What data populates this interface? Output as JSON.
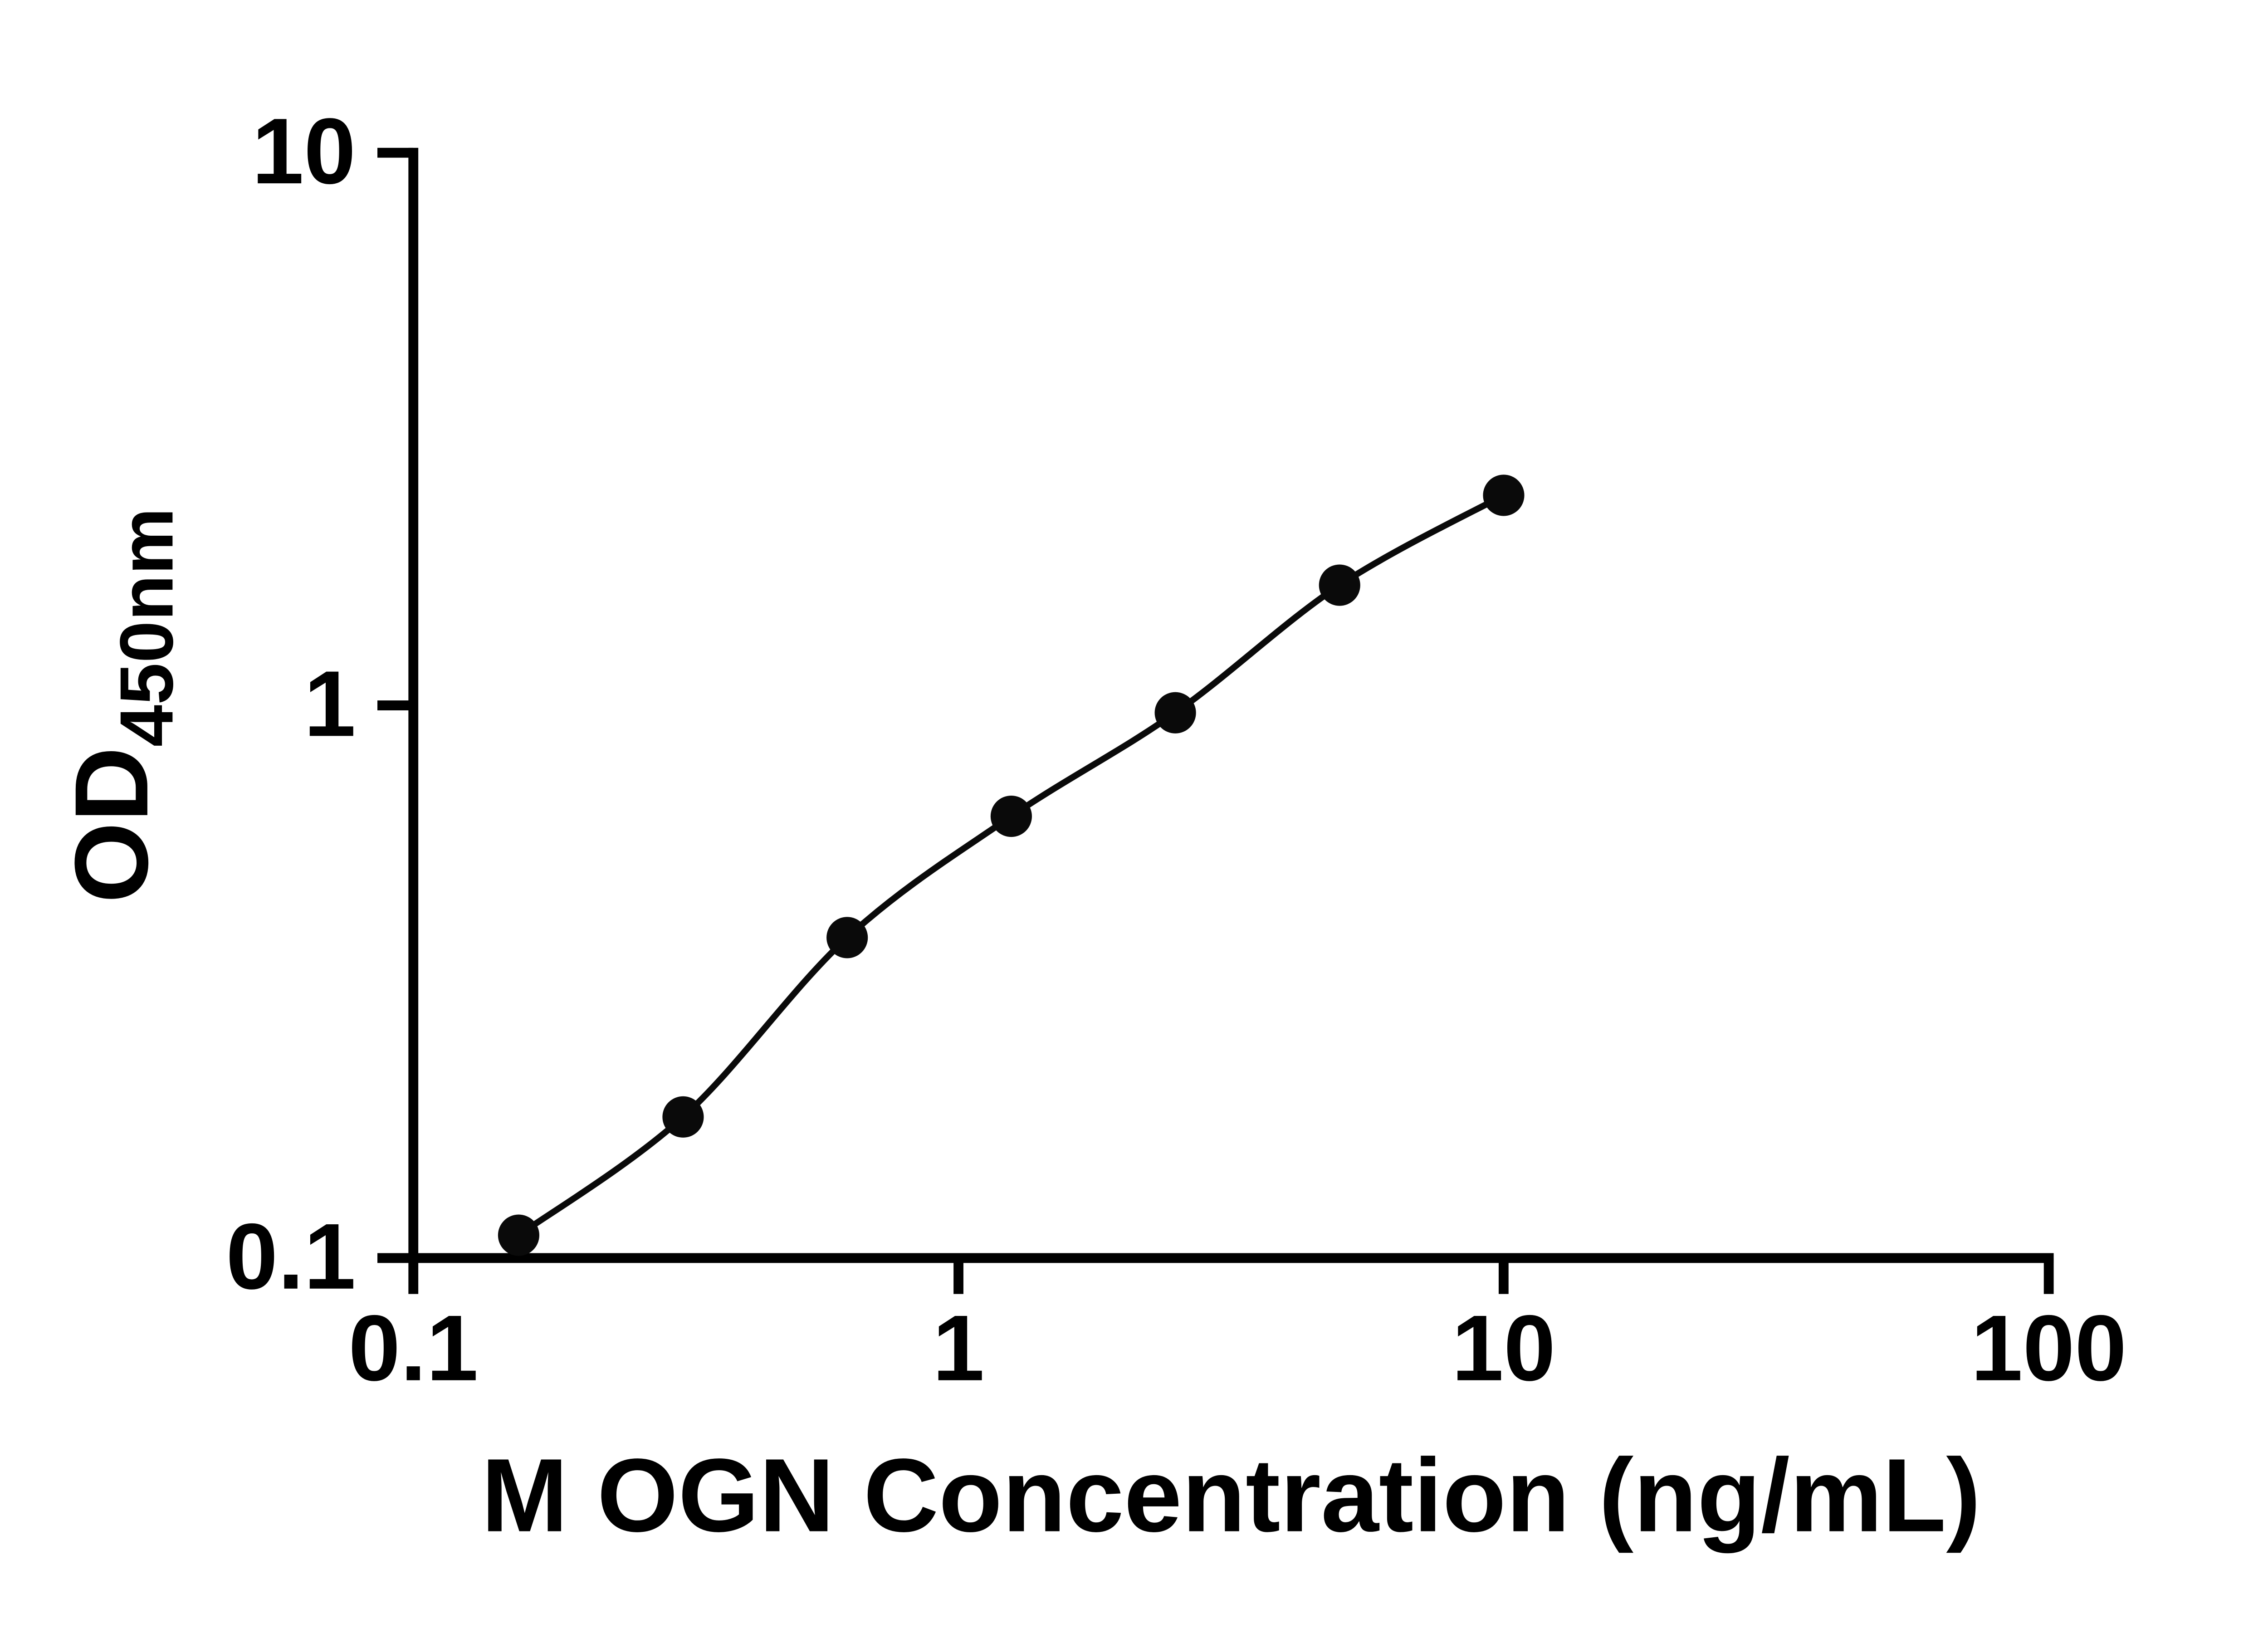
{
  "figure": {
    "background": "#ffffff"
  },
  "chart_data": {
    "type": "scatter",
    "title": "",
    "xlabel": "M OGN Concentration (ng/mL)",
    "ylabel_main": "OD",
    "ylabel_sub": "450nm",
    "x_scale": "log",
    "y_scale": "log",
    "xlim": [
      0.1,
      100
    ],
    "ylim": [
      0.1,
      10
    ],
    "x_ticks": [
      0.1,
      1,
      10,
      100
    ],
    "x_tick_labels": [
      "0.1",
      "1",
      "10",
      "100"
    ],
    "y_ticks": [
      0.1,
      1,
      10
    ],
    "y_tick_labels": [
      "0.1",
      "1",
      "10"
    ],
    "grid": false,
    "legend": "none",
    "points": [
      {
        "x": 0.156,
        "y": 0.11
      },
      {
        "x": 0.3125,
        "y": 0.18
      },
      {
        "x": 0.625,
        "y": 0.38
      },
      {
        "x": 1.25,
        "y": 0.63
      },
      {
        "x": 2.5,
        "y": 0.97
      },
      {
        "x": 5,
        "y": 1.65
      },
      {
        "x": 10,
        "y": 2.4
      }
    ],
    "fit_curve": true,
    "colors": {
      "axis": "#000000",
      "point": "#0a0a0a",
      "curve": "#0a0a0a",
      "background": "#ffffff",
      "text": "#000000"
    }
  }
}
